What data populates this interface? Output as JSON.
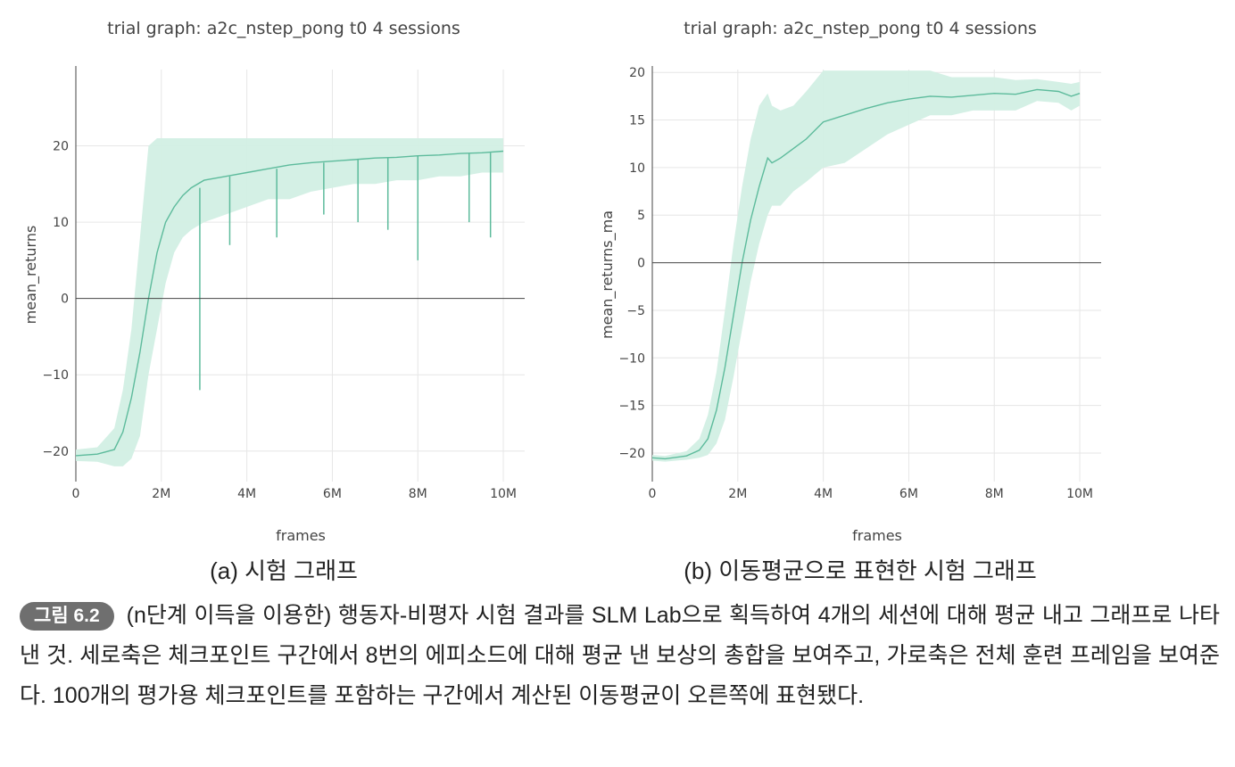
{
  "figure": {
    "badge": "그림 6.2",
    "caption": "(n단계 이득을 이용한) 행동자-비평자 시험 결과를 SLM Lab으로 획득하여 4개의 세션에 대해 평균 내고 그래프로 나타낸 것. 세로축은 체크포인트 구간에서 8번의 에피소드에 대해 평균 낸 보상의 총합을 보여주고, 가로축은 전체 훈련 프레임을 보여준다. 100개의 평가용 체크포인트를 포함하는 구간에서 계산된 이동평균이 오른쪽에 표현됐다."
  },
  "colors": {
    "line": "#5dbb9c",
    "band": "#d2efe4",
    "grid": "#e6e6e6",
    "zero": "#444444",
    "text": "#444444"
  },
  "chart_data": [
    {
      "type": "line",
      "subcaption": "(a) 시험 그래프",
      "title": "trial graph: a2c_nstep_pong t0 4 sessions",
      "xlabel": "frames",
      "ylabel": "mean_returns",
      "xlim": [
        0,
        10500000
      ],
      "ylim": [
        -24,
        30
      ],
      "xticks": [
        0,
        2000000,
        4000000,
        6000000,
        8000000,
        10000000
      ],
      "xticklabels": [
        "0",
        "2M",
        "4M",
        "6M",
        "8M",
        "10M"
      ],
      "yticks": [
        -20,
        -10,
        0,
        10,
        20
      ],
      "yticklabels": [
        "−20",
        "−10",
        "0",
        "10",
        "20"
      ],
      "series": [
        {
          "name": "mean_returns",
          "x": [
            0,
            500000,
            900000,
            1100000,
            1300000,
            1500000,
            1700000,
            1900000,
            2100000,
            2300000,
            2500000,
            2700000,
            3000000,
            3500000,
            4000000,
            4500000,
            5000000,
            5500000,
            6000000,
            6500000,
            7000000,
            7500000,
            8000000,
            8500000,
            9000000,
            9500000,
            10000000
          ],
          "values": [
            -20.6,
            -20.4,
            -19.8,
            -17.5,
            -13,
            -7,
            0,
            6,
            10,
            12,
            13.5,
            14.5,
            15.5,
            16,
            16.5,
            17,
            17.5,
            17.8,
            18,
            18.2,
            18.4,
            18.5,
            18.7,
            18.8,
            19,
            19.1,
            19.3
          ],
          "upper": [
            -19.8,
            -19.5,
            -17,
            -12,
            -4,
            8,
            20,
            21,
            21,
            21,
            21,
            21,
            21,
            21,
            21,
            21,
            21,
            21,
            21,
            21,
            21,
            21,
            21,
            21,
            21,
            21,
            21
          ],
          "lower": [
            -21.3,
            -21.4,
            -22,
            -22,
            -21,
            -18,
            -10,
            -4,
            2,
            6,
            8,
            9,
            10,
            11,
            12,
            13,
            13,
            14,
            14.5,
            15,
            15,
            15.5,
            15.5,
            16,
            16,
            16.5,
            16.5
          ],
          "dips": [
            {
              "x": 2900000,
              "y": -12
            },
            {
              "x": 3600000,
              "y": 7
            },
            {
              "x": 4700000,
              "y": 8
            },
            {
              "x": 5800000,
              "y": 11
            },
            {
              "x": 6600000,
              "y": 10
            },
            {
              "x": 7300000,
              "y": 9
            },
            {
              "x": 8000000,
              "y": 5
            },
            {
              "x": 9200000,
              "y": 10
            },
            {
              "x": 9700000,
              "y": 8
            }
          ]
        }
      ]
    },
    {
      "type": "line",
      "subcaption": "(b) 이동평균으로 표현한 시험 그래프",
      "title": "trial graph: a2c_nstep_pong t0 4 sessions",
      "xlabel": "frames",
      "ylabel": "mean_returns_ma",
      "xlim": [
        0,
        10500000
      ],
      "ylim": [
        -23,
        20.3
      ],
      "xticks": [
        0,
        2000000,
        4000000,
        6000000,
        8000000,
        10000000
      ],
      "xticklabels": [
        "0",
        "2M",
        "4M",
        "6M",
        "8M",
        "10M"
      ],
      "yticks": [
        -20,
        -15,
        -10,
        -5,
        0,
        5,
        10,
        15,
        20
      ],
      "yticklabels": [
        "−20",
        "−15",
        "−10",
        "−5",
        "0",
        "5",
        "10",
        "15",
        "20"
      ],
      "series": [
        {
          "name": "mean_returns_ma",
          "x": [
            0,
            300000,
            800000,
            1100000,
            1300000,
            1500000,
            1700000,
            1900000,
            2100000,
            2300000,
            2500000,
            2700000,
            2800000,
            3000000,
            3300000,
            3600000,
            4000000,
            4500000,
            5000000,
            5500000,
            6000000,
            6500000,
            7000000,
            7500000,
            8000000,
            8500000,
            9000000,
            9500000,
            9800000,
            10000000
          ],
          "values": [
            -20.5,
            -20.6,
            -20.3,
            -19.7,
            -18.5,
            -15.5,
            -11,
            -5.5,
            0,
            4.5,
            8,
            11,
            10.5,
            11,
            12,
            13,
            14.8,
            15.5,
            16.2,
            16.8,
            17.2,
            17.5,
            17.4,
            17.6,
            17.8,
            17.7,
            18.2,
            18,
            17.5,
            17.8
          ],
          "upper": [
            -20.2,
            -20.3,
            -19.8,
            -18.5,
            -16,
            -11.5,
            -5,
            2,
            8,
            13,
            16.5,
            17.8,
            16.5,
            16,
            16.5,
            18,
            20.2,
            20.2,
            20.2,
            20.2,
            20.2,
            20.2,
            19.5,
            19.5,
            19.5,
            19.2,
            19.3,
            19,
            18.8,
            19
          ],
          "lower": [
            -20.8,
            -20.9,
            -20.7,
            -20.5,
            -20.2,
            -19,
            -16.5,
            -12,
            -7,
            -2,
            2,
            5,
            6,
            6,
            7.5,
            8.5,
            10,
            10.5,
            12,
            13.5,
            14.5,
            15.5,
            15.5,
            16,
            16,
            16,
            17,
            16.8,
            16,
            16.5
          ]
        }
      ]
    }
  ]
}
